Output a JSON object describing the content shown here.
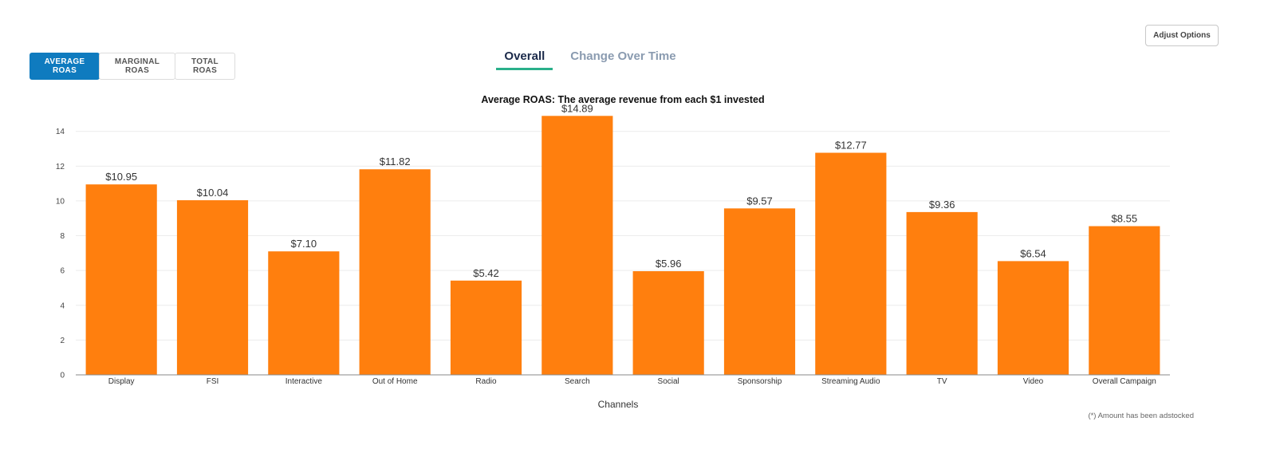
{
  "header": {
    "adjust_label": "Adjust Options",
    "metric_buttons": [
      "AVERAGE ROAS",
      "MARGINAL ROAS",
      "TOTAL ROAS"
    ],
    "tabs": [
      "Overall",
      "Change Over Time"
    ]
  },
  "colors": {
    "bar": "#ff7f0e",
    "accent": "#0f7bbf",
    "tab_underline": "#2ab08a"
  },
  "footnote": "(*) Amount has been adstocked",
  "chart_data": {
    "type": "bar",
    "title": "Average ROAS: The average revenue from each $1 invested",
    "xlabel": "Channels",
    "ylabel": "",
    "ylim": [
      0,
      15.5
    ],
    "yticks": [
      0,
      2,
      4,
      6,
      8,
      10,
      12,
      14
    ],
    "categories": [
      "Display",
      "FSI",
      "Interactive",
      "Out of Home",
      "Radio",
      "Search",
      "Social",
      "Sponsorship",
      "Streaming Audio",
      "TV",
      "Video",
      "Overall Campaign"
    ],
    "values": [
      10.95,
      10.04,
      7.1,
      11.82,
      5.42,
      14.89,
      5.96,
      9.57,
      12.77,
      9.36,
      6.54,
      8.55
    ],
    "labels": [
      "$10.95",
      "$10.04",
      "$7.10",
      "$11.82",
      "$5.42",
      "$14.89",
      "$5.96",
      "$9.57",
      "$12.77",
      "$9.36",
      "$6.54",
      "$8.55"
    ]
  }
}
